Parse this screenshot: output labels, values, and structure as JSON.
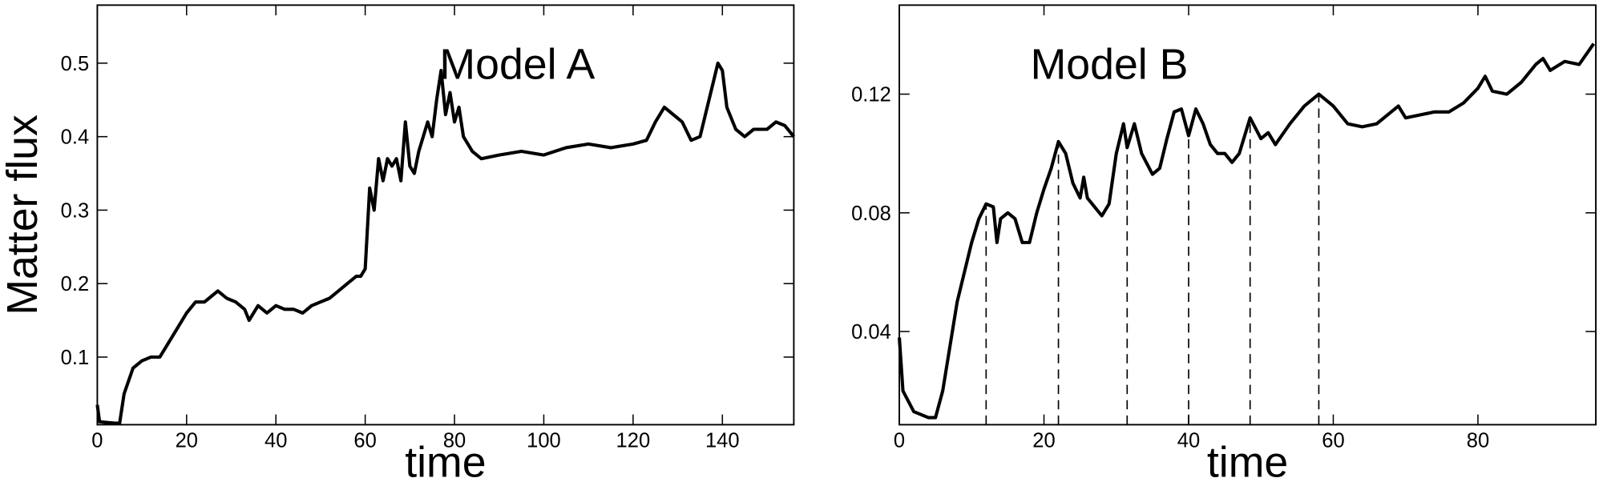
{
  "chart_data": [
    {
      "type": "line",
      "annotation": "Model A",
      "xlabel": "time",
      "ylabel": "Matter flux",
      "xlim": [
        0,
        156
      ],
      "ylim": [
        0.008,
        0.579
      ],
      "xticks": [
        0,
        20,
        40,
        60,
        80,
        100,
        120,
        140
      ],
      "yticks": [
        0.1,
        0.2,
        0.3,
        0.4,
        0.5
      ],
      "color": "#000000",
      "x": [
        0,
        0.5,
        4,
        5,
        6,
        8,
        10,
        12,
        14,
        16,
        18,
        20,
        22,
        24,
        26,
        27,
        29,
        31,
        33,
        34,
        36,
        38,
        40,
        42,
        44,
        46,
        48,
        50,
        52,
        54,
        56,
        58,
        59,
        60,
        61,
        62,
        63,
        64,
        65,
        66,
        67,
        68,
        69,
        70,
        71,
        72,
        74,
        75,
        76,
        77,
        78,
        79,
        80,
        81,
        82,
        84,
        86,
        90,
        95,
        100,
        105,
        110,
        115,
        120,
        123,
        125,
        127,
        129,
        131,
        133,
        135,
        137,
        139,
        140,
        141,
        143,
        145,
        147,
        150,
        152,
        154,
        156
      ],
      "values": [
        0.035,
        0.012,
        0.01,
        0.01,
        0.05,
        0.085,
        0.095,
        0.1,
        0.1,
        0.12,
        0.14,
        0.16,
        0.175,
        0.175,
        0.185,
        0.19,
        0.18,
        0.175,
        0.165,
        0.15,
        0.17,
        0.16,
        0.17,
        0.165,
        0.165,
        0.16,
        0.17,
        0.175,
        0.18,
        0.19,
        0.2,
        0.21,
        0.21,
        0.22,
        0.33,
        0.3,
        0.37,
        0.34,
        0.37,
        0.36,
        0.37,
        0.34,
        0.42,
        0.36,
        0.35,
        0.38,
        0.42,
        0.4,
        0.45,
        0.49,
        0.43,
        0.46,
        0.42,
        0.44,
        0.4,
        0.38,
        0.37,
        0.375,
        0.38,
        0.375,
        0.385,
        0.39,
        0.385,
        0.39,
        0.395,
        0.42,
        0.44,
        0.43,
        0.42,
        0.395,
        0.4,
        0.45,
        0.5,
        0.49,
        0.44,
        0.41,
        0.4,
        0.41,
        0.41,
        0.42,
        0.415,
        0.4
      ]
    },
    {
      "type": "line",
      "annotation": "Model B",
      "xlabel": "time",
      "xlim": [
        0,
        96.3
      ],
      "ylim": [
        0.0086,
        0.15
      ],
      "xticks": [
        0,
        20,
        40,
        60,
        80
      ],
      "yticks": [
        0.04,
        0.08,
        0.12
      ],
      "color": "#000000",
      "vlines": [
        12,
        22,
        31.5,
        40,
        48.5,
        58
      ],
      "x": [
        0,
        0.5,
        2,
        4,
        5,
        6,
        7,
        8,
        9,
        10,
        11,
        12,
        13,
        13.5,
        14,
        15,
        16,
        17,
        18,
        19,
        20,
        21,
        22,
        23,
        24,
        25,
        25.5,
        26,
        27,
        28,
        29,
        30,
        31,
        31.5,
        32.5,
        33.5,
        35,
        36,
        37,
        38,
        39,
        40,
        41,
        42,
        43,
        44,
        45,
        46,
        47,
        48,
        48.5,
        50,
        51,
        52,
        54,
        56,
        58,
        60,
        62,
        64,
        66,
        68,
        69,
        70,
        72,
        74,
        76,
        78,
        80,
        81,
        82,
        84,
        86,
        88,
        89,
        90,
        92,
        94,
        96
      ],
      "values": [
        0.038,
        0.02,
        0.013,
        0.011,
        0.011,
        0.02,
        0.035,
        0.05,
        0.06,
        0.07,
        0.078,
        0.083,
        0.082,
        0.07,
        0.078,
        0.08,
        0.078,
        0.07,
        0.07,
        0.08,
        0.088,
        0.095,
        0.104,
        0.1,
        0.09,
        0.085,
        0.092,
        0.085,
        0.082,
        0.079,
        0.083,
        0.1,
        0.11,
        0.102,
        0.11,
        0.1,
        0.093,
        0.095,
        0.105,
        0.114,
        0.115,
        0.106,
        0.115,
        0.11,
        0.103,
        0.1,
        0.1,
        0.097,
        0.1,
        0.108,
        0.112,
        0.105,
        0.107,
        0.103,
        0.11,
        0.116,
        0.12,
        0.116,
        0.11,
        0.109,
        0.11,
        0.114,
        0.116,
        0.112,
        0.113,
        0.114,
        0.114,
        0.117,
        0.122,
        0.126,
        0.121,
        0.12,
        0.124,
        0.13,
        0.132,
        0.128,
        0.131,
        0.13,
        0.137
      ]
    }
  ]
}
